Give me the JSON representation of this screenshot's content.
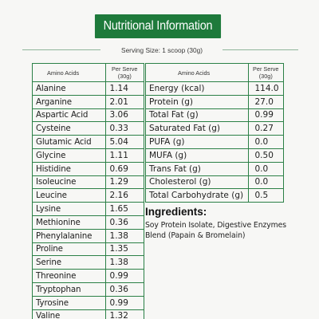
{
  "title": "Nutritional Information",
  "serving_size": "Serving Size: 1 scoop (30g)",
  "amino_table": {
    "header_name": "Amino Acids",
    "header_value": "Per Serve (30g)",
    "rows": [
      {
        "name": "Alanine",
        "value": "1.14"
      },
      {
        "name": "Arganine",
        "value": "2.01"
      },
      {
        "name": "Aspartic Acid",
        "value": "3.06"
      },
      {
        "name": "Cysteine",
        "value": "0.33"
      },
      {
        "name": "Glutamic Acid",
        "value": "5.04"
      },
      {
        "name": "Glycine",
        "value": "1.11"
      },
      {
        "name": "Histidine",
        "value": "0.69"
      },
      {
        "name": "Isoleucine",
        "value": "1.29"
      },
      {
        "name": "Leucine",
        "value": "2.16"
      },
      {
        "name": "Lysine",
        "value": "1.65"
      },
      {
        "name": "Methionine",
        "value": "0.36"
      },
      {
        "name": "Phenylalanine",
        "value": "1.38"
      },
      {
        "name": "Proline",
        "value": "1.35"
      },
      {
        "name": "Serine",
        "value": "1.38"
      },
      {
        "name": "Threonine",
        "value": "0.99"
      },
      {
        "name": "Tryptophan",
        "value": "0.36"
      },
      {
        "name": "Tyrosine",
        "value": "0.99"
      },
      {
        "name": "Valine",
        "value": "1.32"
      }
    ]
  },
  "nutrition_table": {
    "header_name": "Amino Acids",
    "header_value": "Per Serve (30g)",
    "rows": [
      {
        "name": "Energy (kcal)",
        "value": "114.0"
      },
      {
        "name": "Protein (g)",
        "value": "27.0"
      },
      {
        "name": "Total Fat (g)",
        "value": "0.99"
      },
      {
        "name": "Saturated Fat (g)",
        "value": "0.27"
      },
      {
        "name": "PUFA (g)",
        "value": "0.0"
      },
      {
        "name": "MUFA (g)",
        "value": "0.50"
      },
      {
        "name": "Trans Fat (g)",
        "value": "0.0"
      },
      {
        "name": "Cholesterol (g)",
        "value": "0.0"
      },
      {
        "name": "Total Carbohydrate (g)",
        "value": "0.5"
      }
    ]
  },
  "ingredients": {
    "heading": "Ingredients:",
    "text": "Soy Protein Isolate, Digestive Enzymes Blend (Papain & Bromelain)"
  },
  "colors": {
    "brand_green": "#1e7a3b",
    "table_border": "#2b8046",
    "background": "#f7f7f5"
  }
}
